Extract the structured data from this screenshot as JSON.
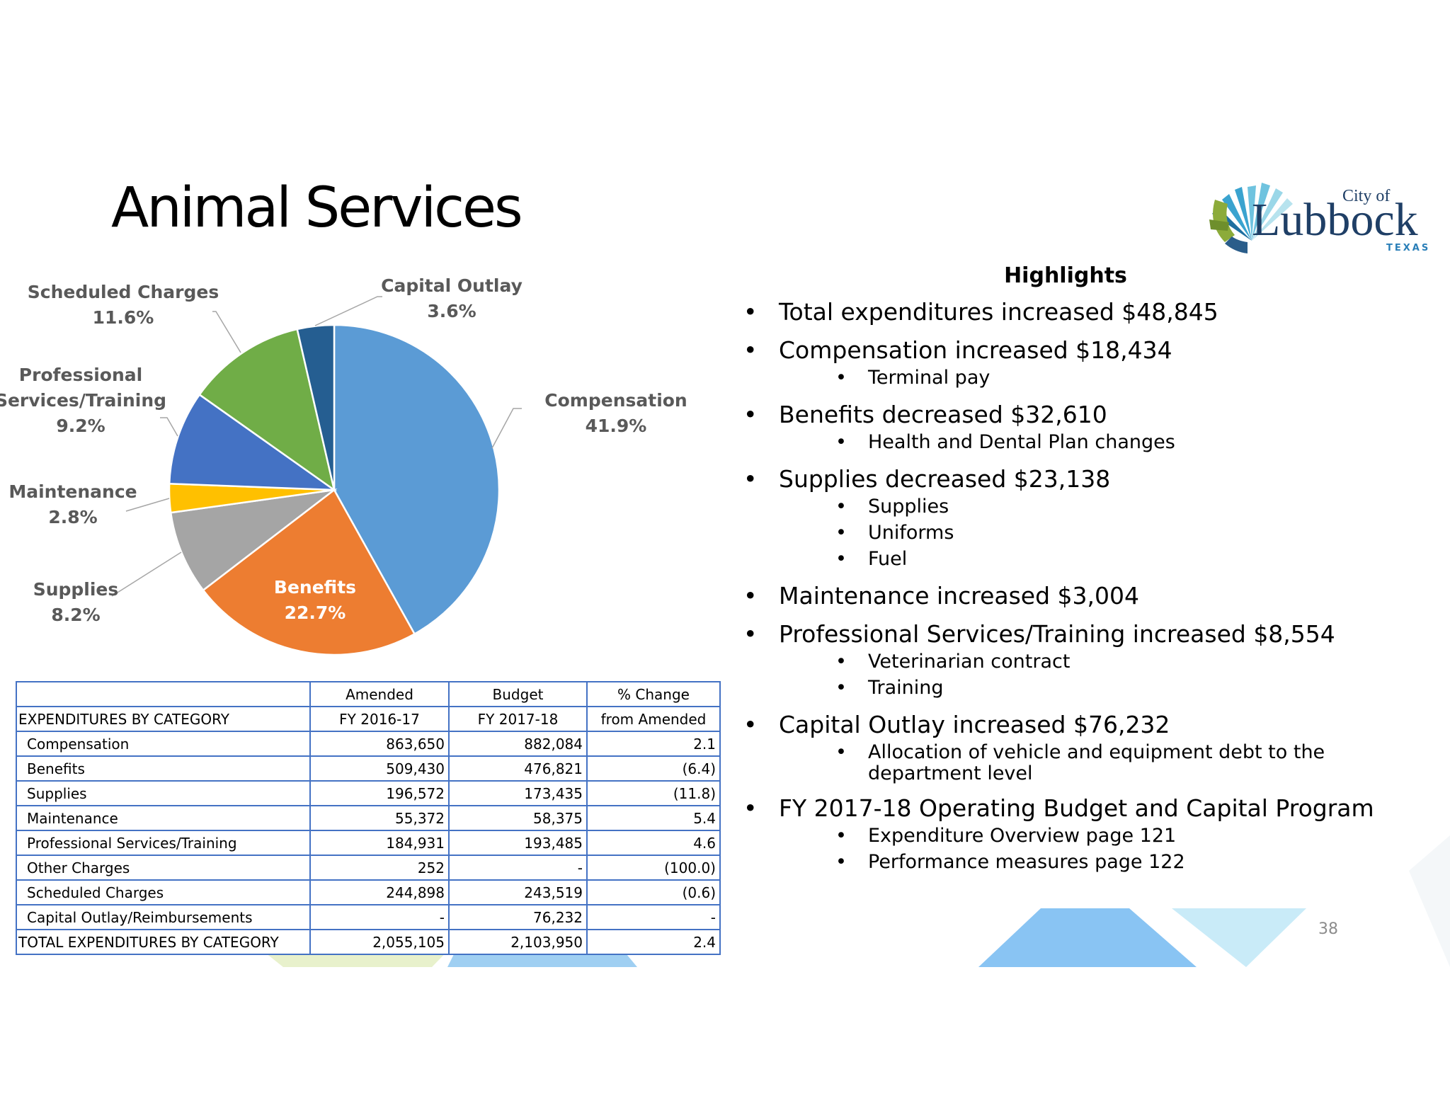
{
  "title": "Animal Services",
  "colors": {
    "compensation": "#5b9bd5",
    "benefits": "#ed7d31",
    "supplies": "#a5a5a5",
    "maintenance": "#ffc000",
    "professional": "#4472c4",
    "scheduled": "#70ad47",
    "capital": "#255e91",
    "table_border": "#4472c4",
    "label_text": "#595959"
  },
  "logo": {
    "city_of": "City of",
    "name": "Lubbock",
    "state": "TEXAS"
  },
  "chart_data": {
    "type": "pie",
    "title": "",
    "slices": [
      {
        "label": "Compensation",
        "value": 41.9,
        "display": "41.9%",
        "color": "#5b9bd5"
      },
      {
        "label": "Benefits",
        "value": 22.7,
        "display": "22.7%",
        "color": "#ed7d31"
      },
      {
        "label": "Supplies",
        "value": 8.2,
        "display": "8.2%",
        "color": "#a5a5a5"
      },
      {
        "label": "Maintenance",
        "value": 2.8,
        "display": "2.8%",
        "color": "#ffc000"
      },
      {
        "label": "Professional Services/Training",
        "value": 9.2,
        "display": "9.2%",
        "color": "#4472c4"
      },
      {
        "label": "Scheduled Charges",
        "value": 11.6,
        "display": "11.6%",
        "color": "#70ad47"
      },
      {
        "label": "Capital Outlay",
        "value": 3.6,
        "display": "3.6%",
        "color": "#255e91"
      }
    ]
  },
  "table": {
    "header1": [
      "",
      "Amended",
      "Budget",
      "% Change"
    ],
    "header2": [
      "EXPENDITURES BY CATEGORY",
      "FY 2016-17",
      "FY 2017-18",
      "from Amended"
    ],
    "rows": [
      [
        "Compensation",
        "863,650",
        "882,084",
        "2.1"
      ],
      [
        "Benefits",
        "509,430",
        "476,821",
        "(6.4)"
      ],
      [
        "Supplies",
        "196,572",
        "173,435",
        "(11.8)"
      ],
      [
        "Maintenance",
        "55,372",
        "58,375",
        "5.4"
      ],
      [
        "Professional Services/Training",
        "184,931",
        "193,485",
        "4.6"
      ],
      [
        "Other Charges",
        "252",
        "-",
        "(100.0)"
      ],
      [
        "Scheduled Charges",
        "244,898",
        "243,519",
        "(0.6)"
      ],
      [
        "Capital Outlay/Reimbursements",
        "-",
        "76,232",
        "-"
      ]
    ],
    "total": [
      "TOTAL EXPENDITURES BY CATEGORY",
      "2,055,105",
      "2,103,950",
      "2.4"
    ]
  },
  "highlights": {
    "title": "Highlights",
    "items": [
      {
        "text": "Total expenditures increased $48,845",
        "sub": []
      },
      {
        "text": "Compensation increased $18,434",
        "sub": [
          "Terminal pay"
        ]
      },
      {
        "text": "Benefits decreased $32,610",
        "sub": [
          "Health and Dental Plan changes"
        ]
      },
      {
        "text": "Supplies decreased $23,138",
        "sub": [
          "Supplies",
          "Uniforms",
          "Fuel"
        ]
      },
      {
        "text": "Maintenance increased $3,004",
        "sub": []
      },
      {
        "text": "Professional Services/Training increased $8,554",
        "sub": [
          "Veterinarian contract",
          "Training"
        ]
      },
      {
        "text": "Capital Outlay increased $76,232",
        "sub": [
          "Allocation of vehicle and equipment debt to the department level"
        ]
      },
      {
        "text": "FY 2017-18 Operating Budget and Capital Program",
        "sub": [
          "Expenditure Overview page 121",
          "Performance measures page 122"
        ]
      }
    ]
  },
  "page_number": "38"
}
